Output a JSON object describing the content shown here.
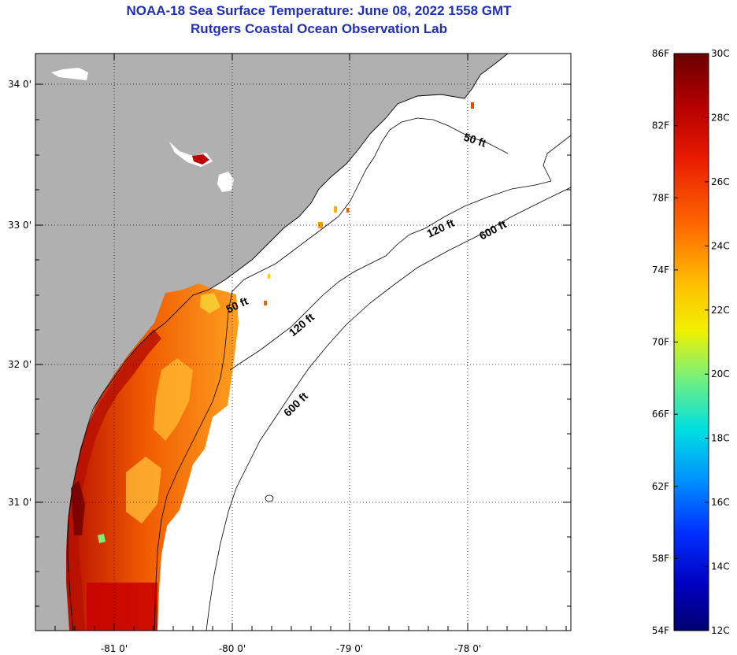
{
  "header": {
    "title": "NOAA-18 Sea Surface Temperature:  June 08, 2022 1558 GMT",
    "subtitle": "Rutgers Coastal Ocean Observation Lab"
  },
  "axes": {
    "longitude_labels": [
      "-81 0'",
      "-80 0'",
      "-79 0'",
      "-78 0'"
    ],
    "latitude_labels": [
      "34 0'",
      "33 0'",
      "32 0'",
      "31 0'"
    ]
  },
  "contours": {
    "labels": [
      "50 ft",
      "50 ft",
      "120 ft",
      "120 ft",
      "600 ft",
      "600 ft"
    ]
  },
  "colorbar": {
    "fahrenheit_labels": [
      "86F",
      "82F",
      "78F",
      "74F",
      "70F",
      "66F",
      "62F",
      "58F",
      "54F"
    ],
    "celsius_labels": [
      "30C",
      "28C",
      "26C",
      "24C",
      "22C",
      "20C",
      "18C",
      "16C",
      "14C",
      "12C"
    ],
    "colors": [
      "#6b0000",
      "#b30000",
      "#e81a00",
      "#ff6a00",
      "#ffc000",
      "#f0f000",
      "#7af07a",
      "#00e0e0",
      "#0090ff",
      "#0030ff",
      "#0000c0",
      "#000070"
    ]
  },
  "colors": {
    "land": "#b0b0b0",
    "ocean": "#ffffff",
    "title": "#1f2fb8"
  }
}
